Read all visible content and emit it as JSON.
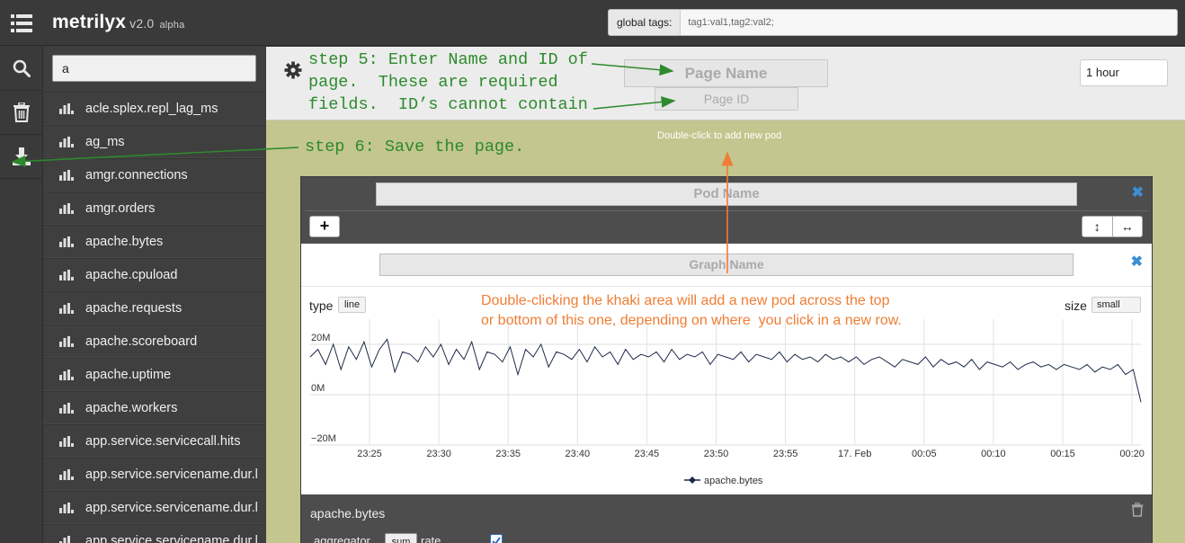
{
  "app": {
    "name": "metrilyx",
    "version": "v2.0",
    "channel": "alpha"
  },
  "global_tags": {
    "label": "global tags:",
    "value": "tag1:val1,tag2:val2;"
  },
  "sidebar": {
    "search_value": "a",
    "icons": [
      "search-icon",
      "trash-icon",
      "download-icon"
    ],
    "metrics": [
      "acle.splex.repl_lag_ms",
      "ag_ms",
      "amgr.connections",
      "amgr.orders",
      "apache.bytes",
      "apache.cpuload",
      "apache.requests",
      "apache.scoreboard",
      "apache.uptime",
      "apache.workers",
      "app.service.servicecall.hits",
      "app.service.servicename.dur.l",
      "app.service.servicename.dur.l",
      "app.service.servicename.dur.l"
    ]
  },
  "page": {
    "name_placeholder": "Page Name",
    "id_placeholder": "Page ID",
    "time_range": "1 hour",
    "khaki_hint": "Double-click to add new pod"
  },
  "pod": {
    "name_placeholder": "Pod Name",
    "add_label": "+",
    "resize_vertical": "↕",
    "resize_horizontal": "↔",
    "graph": {
      "name_placeholder": "Graph Name",
      "type_label": "type",
      "type_value": "line",
      "size_label": "size",
      "size_value": "small"
    },
    "series_title": "apache.bytes",
    "aggregator_label": "aggregator",
    "aggregator_value": "sum",
    "rate_label": "rate",
    "rate_checked": true
  },
  "chart_data": {
    "type": "line",
    "title": "",
    "xlabel": "",
    "ylabel": "",
    "x_ticks": [
      "23:25",
      "23:30",
      "23:35",
      "23:40",
      "23:45",
      "23:50",
      "23:55",
      "17. Feb",
      "00:05",
      "00:10",
      "00:15",
      "00:20"
    ],
    "y_ticks": [
      "20M",
      "0M",
      "−20M"
    ],
    "ylim": [
      -20,
      30
    ],
    "legend": "bottom-center",
    "grid": true,
    "series": [
      {
        "name": "apache.bytes",
        "color": "#1c2a48",
        "values": [
          15,
          18,
          12,
          20,
          10,
          19,
          14,
          21,
          11,
          18,
          22,
          9,
          17,
          16,
          13,
          19,
          15,
          20,
          12,
          18,
          14,
          21,
          10,
          17,
          16,
          13,
          19,
          8,
          18,
          15,
          20,
          11,
          17,
          16,
          14,
          18,
          13,
          19,
          15,
          17,
          12,
          18,
          14,
          16,
          15,
          17,
          13,
          18,
          14,
          16,
          15,
          17,
          12,
          16,
          15,
          14,
          17,
          13,
          16,
          15,
          14,
          17,
          13,
          16,
          14,
          15,
          13,
          16,
          14,
          15,
          13,
          15,
          12,
          14,
          15,
          13,
          11,
          14,
          13,
          12,
          15,
          11,
          14,
          12,
          13,
          11,
          14,
          10,
          13,
          12,
          11,
          13,
          10,
          12,
          13,
          11,
          12,
          10,
          12,
          11,
          10,
          12,
          9,
          11,
          10,
          12,
          8,
          10,
          -3
        ]
      }
    ]
  },
  "annotations": {
    "step5": "step 5: Enter Name and ID of\npage.  These are required\nfields.  ID’s cannot contain",
    "step6": "step 6: Save the page.",
    "pod_note": "Double-clicking the khaki area will add a new pod across the top\nor bottom of this one, depending on where  you click in a new row."
  }
}
